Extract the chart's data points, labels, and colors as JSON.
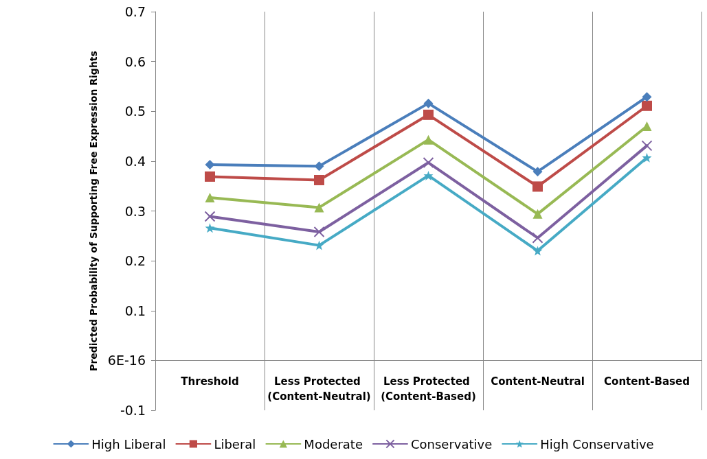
{
  "chart_data": {
    "type": "line",
    "ylabel": "Predicted Probability of Supporting Free Expression Rights",
    "categories": [
      "Threshold",
      "Less Protected (Content-Neutral)",
      "Less Protected (Content-Based)",
      "Content-Neutral",
      "Content-Based"
    ],
    "series": [
      {
        "name": "High Liberal",
        "color": "#4a7ebb",
        "marker": "diamond",
        "values": [
          0.393,
          0.39,
          0.516,
          0.379,
          0.529
        ]
      },
      {
        "name": "Liberal",
        "color": "#be4b48",
        "marker": "square",
        "values": [
          0.369,
          0.362,
          0.493,
          0.349,
          0.511
        ]
      },
      {
        "name": "Moderate",
        "color": "#98b954",
        "marker": "triangle",
        "values": [
          0.327,
          0.307,
          0.443,
          0.294,
          0.47
        ]
      },
      {
        "name": "Conservative",
        "color": "#7d60a0",
        "marker": "cross",
        "values": [
          0.289,
          0.258,
          0.397,
          0.246,
          0.431
        ]
      },
      {
        "name": "High Conservative",
        "color": "#46aac5",
        "marker": "star",
        "values": [
          0.266,
          0.231,
          0.371,
          0.22,
          0.407
        ]
      }
    ],
    "ylim": [
      -0.1,
      0.7
    ],
    "yticks": [
      -0.1,
      {
        "value": 0,
        "label": "6E-16"
      },
      0.1,
      0.2,
      0.3,
      0.4,
      0.5,
      0.6,
      0.7
    ],
    "grid": "x",
    "legend": "bottom",
    "line_style": "solid"
  }
}
